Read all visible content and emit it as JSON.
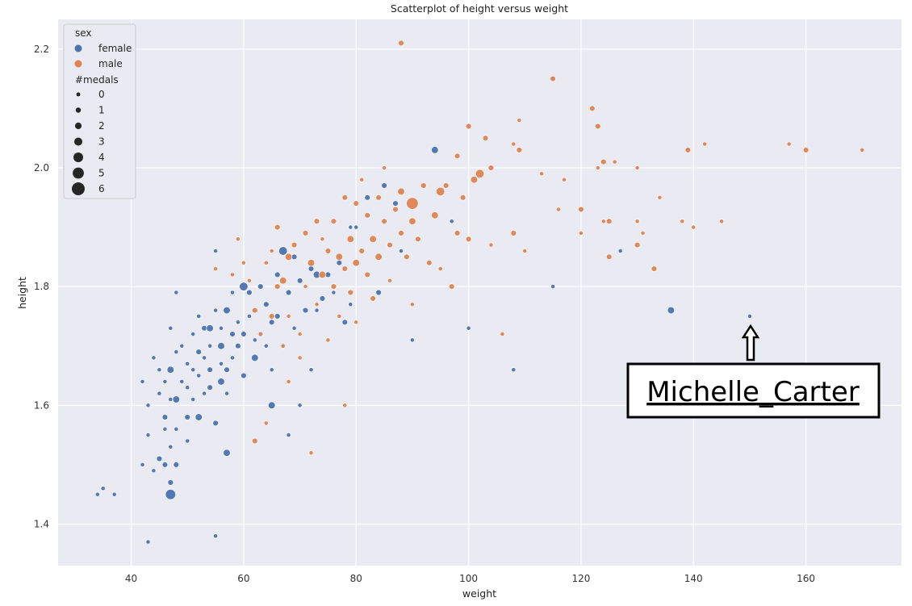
{
  "chart_data": {
    "type": "scatter",
    "title": "Scatterplot of height versus weight",
    "xlabel": "weight",
    "ylabel": "height",
    "xlim": [
      27,
      177
    ],
    "ylim": [
      1.33,
      2.25
    ],
    "xticks": [
      40,
      60,
      80,
      100,
      120,
      140,
      160
    ],
    "yticks": [
      1.4,
      1.6,
      1.8,
      2.0,
      2.2
    ],
    "xtick_labels": [
      "40",
      "60",
      "80",
      "100",
      "120",
      "140",
      "160"
    ],
    "ytick_labels": [
      "1.4",
      "1.6",
      "1.8",
      "2.0",
      "2.2"
    ],
    "grid": true,
    "legend": {
      "placement": "top-left",
      "hue_title": "sex",
      "hue_entries": [
        {
          "label": "female",
          "color": "#4c72b0"
        },
        {
          "label": "male",
          "color": "#dd8452"
        }
      ],
      "size_title": "#medals",
      "size_entries": [
        "0",
        "1",
        "2",
        "3",
        "4",
        "5",
        "6"
      ]
    },
    "series": [
      {
        "name": "female",
        "color": "#4c72b0",
        "points": [
          [
            34,
            1.45,
            0
          ],
          [
            35,
            1.46,
            0
          ],
          [
            37,
            1.45,
            0
          ],
          [
            42,
            1.64,
            0
          ],
          [
            42,
            1.5,
            0
          ],
          [
            43,
            1.37,
            0
          ],
          [
            43,
            1.55,
            0
          ],
          [
            43,
            1.6,
            0
          ],
          [
            44,
            1.68,
            0
          ],
          [
            44,
            1.49,
            0
          ],
          [
            45,
            1.51,
            1
          ],
          [
            45,
            1.62,
            0
          ],
          [
            45,
            1.66,
            0
          ],
          [
            46,
            1.58,
            1
          ],
          [
            46,
            1.5,
            1
          ],
          [
            46,
            1.64,
            0
          ],
          [
            46,
            1.56,
            0
          ],
          [
            47,
            1.45,
            4
          ],
          [
            47,
            1.47,
            1
          ],
          [
            47,
            1.66,
            2
          ],
          [
            47,
            1.73,
            0
          ],
          [
            47,
            1.61,
            0
          ],
          [
            47,
            1.53,
            0
          ],
          [
            48,
            1.61,
            2
          ],
          [
            48,
            1.5,
            1
          ],
          [
            48,
            1.69,
            0
          ],
          [
            48,
            1.79,
            0
          ],
          [
            48,
            1.56,
            0
          ],
          [
            49,
            1.7,
            0
          ],
          [
            49,
            1.64,
            0
          ],
          [
            50,
            1.67,
            0
          ],
          [
            50,
            1.63,
            0
          ],
          [
            50,
            1.58,
            1
          ],
          [
            50,
            1.54,
            0
          ],
          [
            51,
            1.66,
            0
          ],
          [
            51,
            1.72,
            0
          ],
          [
            51,
            1.61,
            0
          ],
          [
            52,
            1.58,
            2
          ],
          [
            52,
            1.69,
            1
          ],
          [
            52,
            1.65,
            0
          ],
          [
            52,
            1.75,
            0
          ],
          [
            53,
            1.73,
            1
          ],
          [
            53,
            1.68,
            0
          ],
          [
            53,
            1.62,
            0
          ],
          [
            54,
            1.73,
            2
          ],
          [
            54,
            1.7,
            0
          ],
          [
            54,
            1.66,
            1
          ],
          [
            54,
            1.63,
            1
          ],
          [
            55,
            1.86,
            0
          ],
          [
            55,
            1.57,
            1
          ],
          [
            55,
            1.76,
            0
          ],
          [
            55,
            1.38,
            0
          ],
          [
            56,
            1.64,
            2
          ],
          [
            56,
            1.7,
            2
          ],
          [
            56,
            1.67,
            0
          ],
          [
            56,
            1.73,
            0
          ],
          [
            57,
            1.52,
            2
          ],
          [
            57,
            1.76,
            2
          ],
          [
            57,
            1.66,
            1
          ],
          [
            57,
            1.62,
            0
          ],
          [
            58,
            1.72,
            1
          ],
          [
            58,
            1.79,
            0
          ],
          [
            58,
            1.68,
            0
          ],
          [
            59,
            1.7,
            1
          ],
          [
            59,
            1.74,
            0
          ],
          [
            60,
            1.8,
            3
          ],
          [
            60,
            1.65,
            1
          ],
          [
            60,
            1.72,
            1
          ],
          [
            61,
            1.79,
            1
          ],
          [
            61,
            1.75,
            0
          ],
          [
            62,
            1.68,
            2
          ],
          [
            62,
            1.71,
            0
          ],
          [
            63,
            1.8,
            1
          ],
          [
            63,
            1.72,
            1
          ],
          [
            64,
            1.77,
            1
          ],
          [
            64,
            1.7,
            0
          ],
          [
            65,
            1.6,
            2
          ],
          [
            65,
            1.74,
            1
          ],
          [
            65,
            1.66,
            0
          ],
          [
            66,
            1.82,
            1
          ],
          [
            66,
            1.75,
            1
          ],
          [
            67,
            1.86,
            3
          ],
          [
            67,
            1.7,
            1
          ],
          [
            68,
            1.79,
            1
          ],
          [
            68,
            1.55,
            0
          ],
          [
            69,
            1.85,
            1
          ],
          [
            69,
            1.73,
            0
          ],
          [
            70,
            1.6,
            0
          ],
          [
            70,
            1.81,
            1
          ],
          [
            71,
            1.76,
            1
          ],
          [
            72,
            1.83,
            1
          ],
          [
            72,
            1.66,
            0
          ],
          [
            73,
            1.82,
            2
          ],
          [
            73,
            1.76,
            0
          ],
          [
            74,
            1.78,
            1
          ],
          [
            75,
            1.82,
            1
          ],
          [
            76,
            1.79,
            0
          ],
          [
            77,
            1.84,
            1
          ],
          [
            78,
            1.74,
            1
          ],
          [
            79,
            1.9,
            0
          ],
          [
            79,
            1.77,
            0
          ],
          [
            80,
            1.9,
            0
          ],
          [
            82,
            1.95,
            1
          ],
          [
            84,
            1.79,
            1
          ],
          [
            85,
            1.97,
            1
          ],
          [
            87,
            1.94,
            1
          ],
          [
            88,
            1.86,
            0
          ],
          [
            90,
            1.71,
            0
          ],
          [
            94,
            2.03,
            2
          ],
          [
            97,
            1.91,
            0
          ],
          [
            100,
            1.73,
            0
          ],
          [
            108,
            1.66,
            0
          ],
          [
            115,
            1.8,
            0
          ],
          [
            127,
            1.86,
            0
          ],
          [
            136,
            1.76,
            2
          ],
          [
            150,
            1.75,
            0
          ]
        ]
      },
      {
        "name": "male",
        "color": "#dd8452",
        "points": [
          [
            55,
            1.83,
            0
          ],
          [
            58,
            1.82,
            0
          ],
          [
            59,
            1.88,
            0
          ],
          [
            60,
            1.84,
            0
          ],
          [
            61,
            1.81,
            0
          ],
          [
            62,
            1.54,
            1
          ],
          [
            62,
            1.76,
            1
          ],
          [
            63,
            1.72,
            0
          ],
          [
            64,
            1.57,
            0
          ],
          [
            64,
            1.84,
            0
          ],
          [
            65,
            1.75,
            1
          ],
          [
            65,
            1.86,
            0
          ],
          [
            66,
            1.8,
            1
          ],
          [
            66,
            1.9,
            1
          ],
          [
            67,
            1.81,
            2
          ],
          [
            67,
            1.7,
            0
          ],
          [
            68,
            1.85,
            2
          ],
          [
            68,
            1.75,
            0
          ],
          [
            68,
            1.64,
            0
          ],
          [
            69,
            1.87,
            1
          ],
          [
            70,
            1.72,
            0
          ],
          [
            70,
            1.68,
            0
          ],
          [
            71,
            1.89,
            1
          ],
          [
            71,
            1.8,
            0
          ],
          [
            72,
            1.52,
            0
          ],
          [
            72,
            1.84,
            2
          ],
          [
            73,
            1.91,
            1
          ],
          [
            73,
            1.77,
            0
          ],
          [
            74,
            1.82,
            2
          ],
          [
            74,
            1.88,
            0
          ],
          [
            75,
            1.86,
            1
          ],
          [
            75,
            1.71,
            0
          ],
          [
            76,
            1.91,
            1
          ],
          [
            76,
            1.8,
            1
          ],
          [
            77,
            1.85,
            2
          ],
          [
            77,
            1.75,
            0
          ],
          [
            78,
            1.95,
            1
          ],
          [
            78,
            1.83,
            1
          ],
          [
            78,
            1.6,
            0
          ],
          [
            79,
            1.88,
            2
          ],
          [
            79,
            1.79,
            1
          ],
          [
            80,
            1.94,
            1
          ],
          [
            80,
            1.84,
            2
          ],
          [
            80,
            1.74,
            0
          ],
          [
            81,
            1.98,
            0
          ],
          [
            81,
            1.86,
            1
          ],
          [
            82,
            1.92,
            1
          ],
          [
            82,
            1.82,
            1
          ],
          [
            83,
            1.88,
            2
          ],
          [
            83,
            1.78,
            1
          ],
          [
            84,
            1.95,
            1
          ],
          [
            84,
            1.85,
            2
          ],
          [
            85,
            2.0,
            0
          ],
          [
            85,
            1.91,
            1
          ],
          [
            86,
            1.87,
            1
          ],
          [
            86,
            1.81,
            0
          ],
          [
            87,
            1.93,
            1
          ],
          [
            88,
            2.21,
            1
          ],
          [
            88,
            1.96,
            2
          ],
          [
            88,
            1.89,
            1
          ],
          [
            89,
            1.85,
            1
          ],
          [
            90,
            1.94,
            5
          ],
          [
            90,
            1.91,
            2
          ],
          [
            90,
            1.77,
            0
          ],
          [
            91,
            1.88,
            1
          ],
          [
            92,
            1.97,
            1
          ],
          [
            93,
            1.84,
            1
          ],
          [
            94,
            1.92,
            2
          ],
          [
            95,
            1.96,
            3
          ],
          [
            95,
            1.83,
            0
          ],
          [
            96,
            1.97,
            1
          ],
          [
            97,
            1.8,
            1
          ],
          [
            98,
            1.89,
            1
          ],
          [
            98,
            2.02,
            1
          ],
          [
            99,
            1.95,
            1
          ],
          [
            100,
            2.07,
            1
          ],
          [
            100,
            1.88,
            1
          ],
          [
            101,
            1.98,
            2
          ],
          [
            102,
            1.99,
            3
          ],
          [
            103,
            2.05,
            1
          ],
          [
            104,
            2.0,
            1
          ],
          [
            104,
            1.87,
            0
          ],
          [
            106,
            1.72,
            0
          ],
          [
            108,
            1.89,
            1
          ],
          [
            108,
            2.04,
            0
          ],
          [
            109,
            2.08,
            0
          ],
          [
            109,
            2.03,
            1
          ],
          [
            110,
            1.86,
            0
          ],
          [
            113,
            1.99,
            0
          ],
          [
            115,
            2.15,
            1
          ],
          [
            116,
            1.93,
            0
          ],
          [
            117,
            1.98,
            0
          ],
          [
            120,
            1.93,
            1
          ],
          [
            120,
            1.89,
            0
          ],
          [
            122,
            2.1,
            1
          ],
          [
            123,
            2.07,
            1
          ],
          [
            123,
            2.0,
            0
          ],
          [
            124,
            2.01,
            1
          ],
          [
            124,
            1.91,
            0
          ],
          [
            125,
            1.91,
            1
          ],
          [
            125,
            1.85,
            1
          ],
          [
            126,
            2.01,
            0
          ],
          [
            130,
            1.87,
            1
          ],
          [
            130,
            2.0,
            0
          ],
          [
            130,
            1.91,
            0
          ],
          [
            131,
            1.89,
            0
          ],
          [
            133,
            1.83,
            1
          ],
          [
            134,
            1.95,
            0
          ],
          [
            138,
            1.91,
            0
          ],
          [
            139,
            2.03,
            1
          ],
          [
            140,
            1.9,
            0
          ],
          [
            142,
            2.04,
            0
          ],
          [
            145,
            1.91,
            0
          ],
          [
            157,
            2.04,
            0
          ],
          [
            160,
            2.03,
            1
          ],
          [
            170,
            2.03,
            0
          ]
        ]
      }
    ],
    "annotation": {
      "text": "Michelle_Carter",
      "target": [
        150,
        1.75
      ]
    }
  }
}
